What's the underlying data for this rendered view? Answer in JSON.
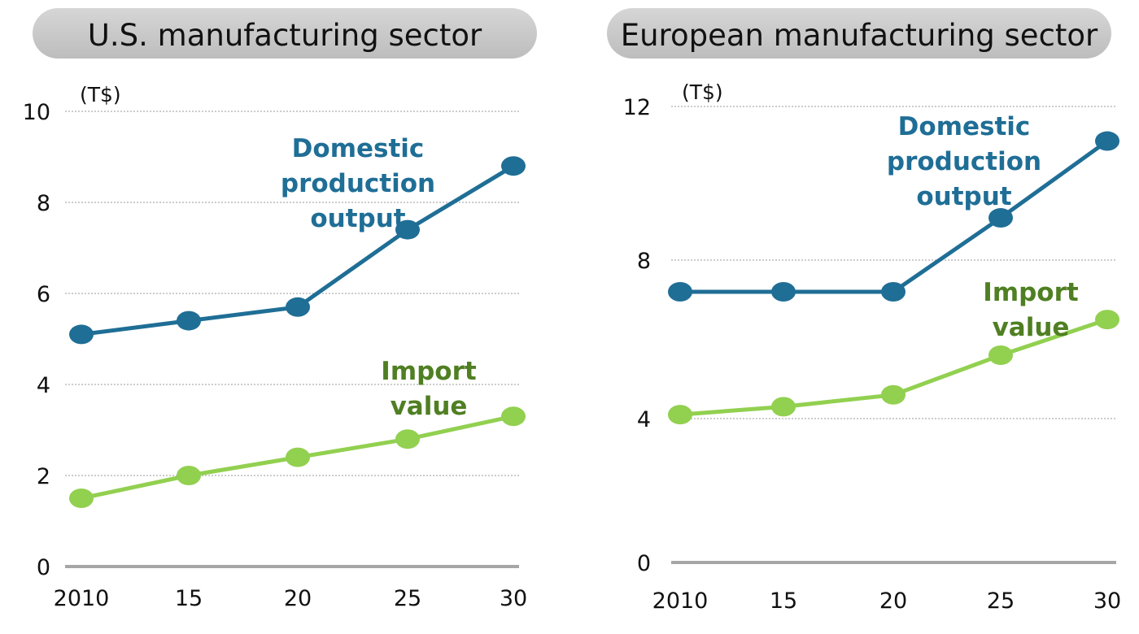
{
  "colors": {
    "domestic": "#1f6e96",
    "import_line": "#92d050",
    "import_label": "#4f7f22",
    "title_bg": "#c8c8c8"
  },
  "chart_data": [
    {
      "type": "line",
      "title": "U.S. manufacturing sector",
      "unit_label": "(T$)",
      "categories": [
        "2010",
        "15",
        "20",
        "25",
        "30"
      ],
      "yticks": [
        "0",
        "2",
        "4",
        "6",
        "8",
        "10"
      ],
      "ylim": [
        0,
        10
      ],
      "grid": true,
      "series": [
        {
          "name": "Domestic production output",
          "label_lines": [
            "Domestic",
            "production",
            "output"
          ],
          "values": [
            5.1,
            5.4,
            5.7,
            7.4,
            8.8
          ]
        },
        {
          "name": "Import value",
          "label_lines": [
            "Import",
            "value"
          ],
          "values": [
            1.5,
            2.0,
            2.4,
            2.8,
            3.3
          ]
        }
      ]
    },
    {
      "type": "line",
      "title": "European manufacturing sector",
      "unit_label": "(T$)",
      "categories": [
        "2010",
        "15",
        "20",
        "25",
        "30"
      ],
      "yticks": [
        "0",
        "4",
        "8",
        "12"
      ],
      "ylim": [
        0,
        12
      ],
      "grid": true,
      "series": [
        {
          "name": "Domestic production output",
          "label_lines": [
            "Domestic",
            "production",
            "output"
          ],
          "values": [
            7.2,
            7.2,
            7.2,
            9.1,
            11.1
          ]
        },
        {
          "name": "Import value",
          "label_lines": [
            "Import",
            "value"
          ],
          "values": [
            4.1,
            4.3,
            4.6,
            5.6,
            6.5
          ]
        }
      ]
    }
  ]
}
